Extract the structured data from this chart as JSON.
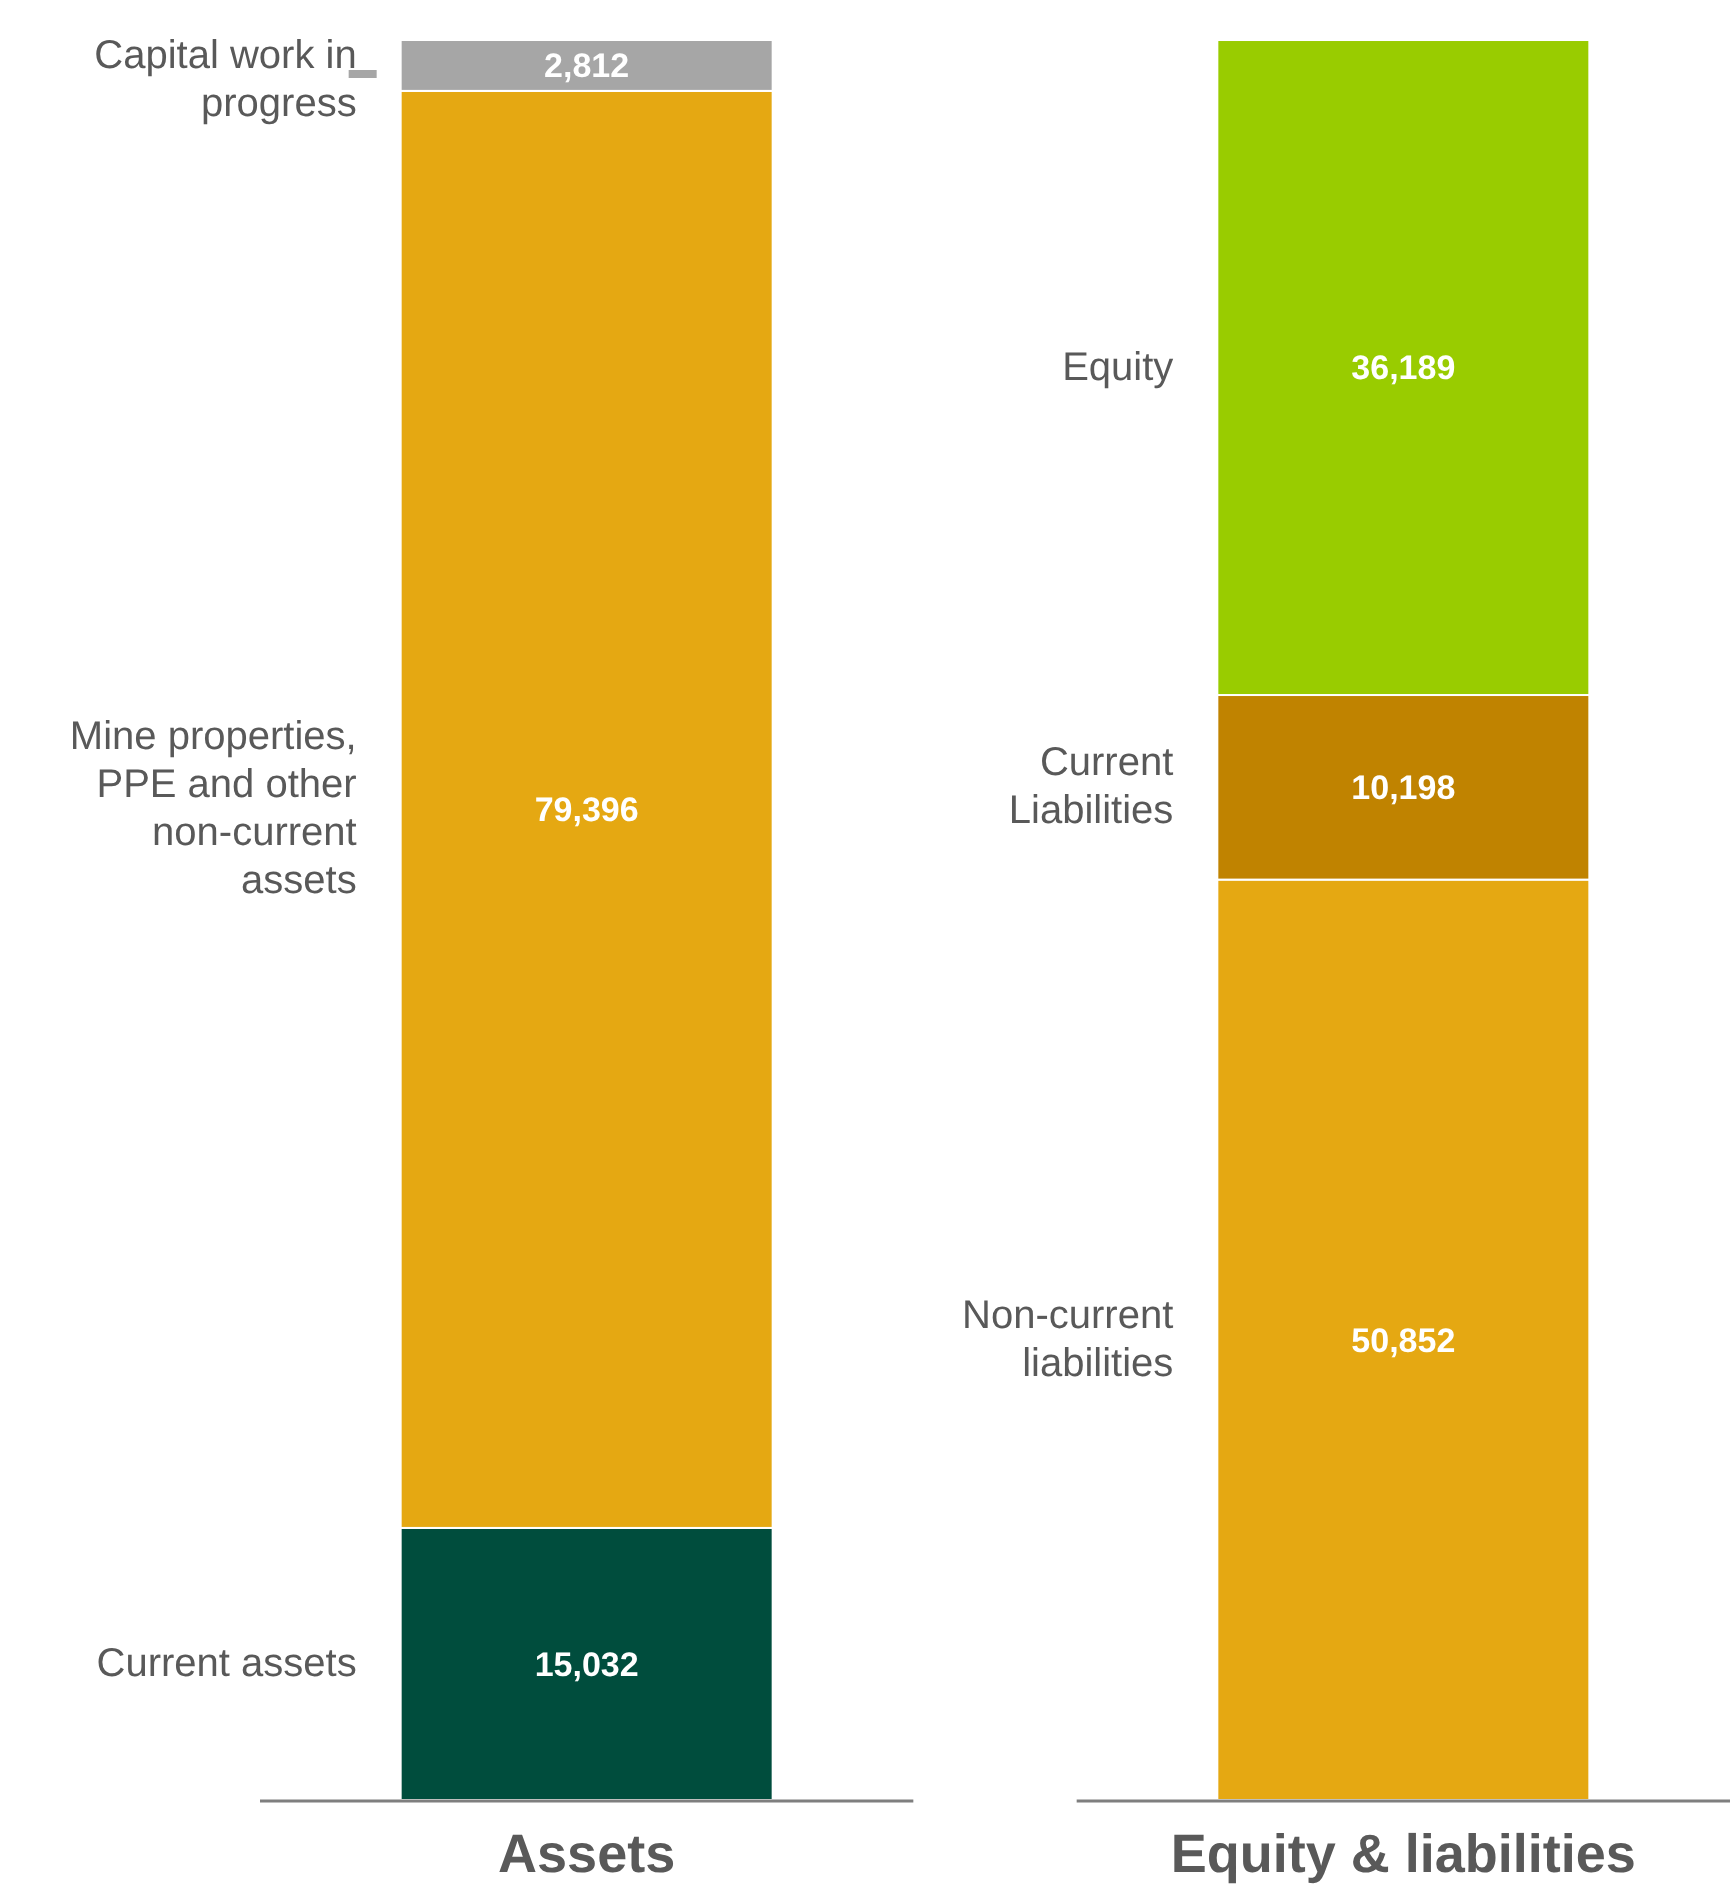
{
  "chart_data": {
    "type": "bar",
    "stacked": true,
    "categories": [
      "Assets",
      "Equity & liabilities"
    ],
    "series": [
      {
        "name": "Current assets",
        "color": "#004d3d",
        "values": [
          15032,
          null
        ],
        "value_labels": [
          "15,032",
          null
        ]
      },
      {
        "name": "Mine properties, PPE and other non-current assets",
        "color": "#e5a812",
        "values": [
          79396,
          null
        ],
        "value_labels": [
          "79,396",
          null
        ]
      },
      {
        "name": "Capital work in progress",
        "color": "#a6a6a6",
        "values": [
          2812,
          null
        ],
        "value_labels": [
          "2,812",
          null
        ]
      },
      {
        "name": "Non-current liabilities",
        "color": "#e5a812",
        "values": [
          null,
          50852
        ],
        "value_labels": [
          null,
          "50,852"
        ]
      },
      {
        "name": "Current Liabilities",
        "color": "#c08300",
        "values": [
          null,
          10198
        ],
        "value_labels": [
          null,
          "10,198"
        ]
      },
      {
        "name": "Equity",
        "color": "#99cc00",
        "values": [
          null,
          36189
        ],
        "value_labels": [
          null,
          "36,189"
        ]
      }
    ]
  }
}
